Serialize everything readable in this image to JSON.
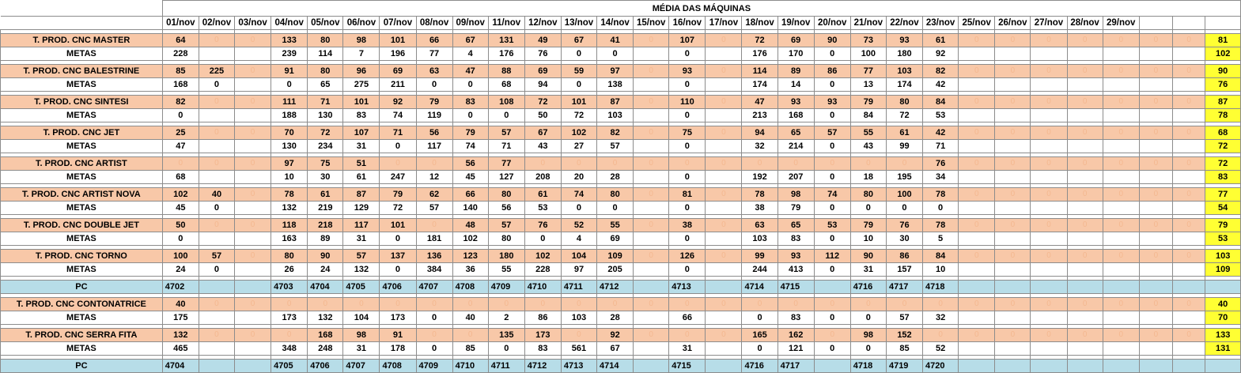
{
  "title": "MÉDIA DAS MÁQUINAS",
  "dates": [
    "01/nov",
    "02/nov",
    "03/nov",
    "04/nov",
    "05/nov",
    "06/nov",
    "07/nov",
    "08/nov",
    "09/nov",
    "11/nov",
    "12/nov",
    "13/nov",
    "14/nov",
    "15/nov",
    "16/nov",
    "17/nov",
    "18/nov",
    "19/nov",
    "20/nov",
    "21/nov",
    "22/nov",
    "23/nov",
    "25/nov",
    "26/nov",
    "27/nov",
    "28/nov",
    "29/nov",
    "",
    ""
  ],
  "meta_label": "METAS",
  "pc_label": "PC",
  "colors": {
    "prod_bg": "#f8c8a8",
    "pc_bg": "#b7dde8",
    "avg_bg": "#ffff33",
    "zero_text": "#f4b890"
  },
  "blocks": [
    {
      "type": "machine",
      "name": "T. PROD. CNC MASTER",
      "prod": [
        "64",
        "0",
        "0",
        "133",
        "80",
        "98",
        "101",
        "66",
        "67",
        "131",
        "49",
        "67",
        "41",
        "0",
        "107",
        "0",
        "72",
        "69",
        "90",
        "73",
        "93",
        "61",
        "0",
        "0",
        "0",
        "0",
        "0",
        "0",
        "0"
      ],
      "meta": [
        "228",
        "",
        "",
        "239",
        "114",
        "7",
        "196",
        "77",
        "4",
        "176",
        "76",
        "0",
        "0",
        "",
        "0",
        "",
        "176",
        "170",
        "0",
        "100",
        "180",
        "92",
        "",
        "",
        "",
        "",
        "",
        "",
        ""
      ],
      "avg_prod": "81",
      "avg_meta": "102"
    },
    {
      "type": "machine",
      "name": "T. PROD. CNC BALESTRINE",
      "prod": [
        "85",
        "225",
        "0",
        "91",
        "80",
        "96",
        "69",
        "63",
        "47",
        "88",
        "69",
        "59",
        "97",
        "0",
        "93",
        "0",
        "114",
        "89",
        "86",
        "77",
        "103",
        "82",
        "0",
        "0",
        "0",
        "0",
        "0",
        "0",
        "0"
      ],
      "meta": [
        "168",
        "0",
        "",
        "0",
        "65",
        "275",
        "211",
        "0",
        "0",
        "68",
        "94",
        "0",
        "138",
        "",
        "0",
        "",
        "174",
        "14",
        "0",
        "13",
        "174",
        "42",
        "",
        "",
        "",
        "",
        "",
        "",
        ""
      ],
      "avg_prod": "90",
      "avg_meta": "76"
    },
    {
      "type": "machine",
      "name": "T. PROD. CNC SINTESI",
      "prod": [
        "82",
        "0",
        "0",
        "111",
        "71",
        "101",
        "92",
        "79",
        "83",
        "108",
        "72",
        "101",
        "87",
        "0",
        "110",
        "0",
        "47",
        "93",
        "93",
        "79",
        "80",
        "84",
        "0",
        "0",
        "0",
        "0",
        "0",
        "0",
        "0"
      ],
      "meta": [
        "0",
        "",
        "",
        "188",
        "130",
        "83",
        "74",
        "119",
        "0",
        "0",
        "50",
        "72",
        "103",
        "",
        "0",
        "",
        "213",
        "168",
        "0",
        "84",
        "72",
        "53",
        "",
        "",
        "",
        "",
        "",
        "",
        ""
      ],
      "avg_prod": "87",
      "avg_meta": "78"
    },
    {
      "type": "machine",
      "name": "T. PROD. CNC JET",
      "prod": [
        "25",
        "0",
        "0",
        "70",
        "72",
        "107",
        "71",
        "56",
        "79",
        "57",
        "67",
        "102",
        "82",
        "0",
        "75",
        "0",
        "94",
        "65",
        "57",
        "55",
        "61",
        "42",
        "0",
        "0",
        "0",
        "0",
        "0",
        "0",
        "0"
      ],
      "meta": [
        "47",
        "",
        "",
        "130",
        "234",
        "31",
        "0",
        "117",
        "74",
        "71",
        "43",
        "27",
        "57",
        "",
        "0",
        "",
        "32",
        "214",
        "0",
        "43",
        "99",
        "71",
        "",
        "",
        "",
        "",
        "",
        "",
        ""
      ],
      "avg_prod": "68",
      "avg_meta": "72"
    },
    {
      "type": "machine",
      "name": "T. PROD. CNC ARTIST",
      "prod": [
        "0",
        "0",
        "0",
        "97",
        "75",
        "51",
        "0",
        "0",
        "56",
        "77",
        "0",
        "0",
        "0",
        "0",
        "0",
        "0",
        "0",
        "0",
        "0",
        "0",
        "0",
        "76",
        "0",
        "0",
        "0",
        "0",
        "0",
        "0",
        "0"
      ],
      "meta": [
        "68",
        "",
        "",
        "10",
        "30",
        "61",
        "247",
        "12",
        "45",
        "127",
        "208",
        "20",
        "28",
        "",
        "0",
        "",
        "192",
        "207",
        "0",
        "18",
        "195",
        "34",
        "",
        "",
        "",
        "",
        "",
        "",
        ""
      ],
      "avg_prod": "72",
      "avg_meta": "83"
    },
    {
      "type": "machine",
      "name": "T. PROD. CNC ARTIST NOVA",
      "prod": [
        "102",
        "40",
        "0",
        "78",
        "61",
        "87",
        "79",
        "62",
        "66",
        "80",
        "61",
        "74",
        "80",
        "0",
        "81",
        "0",
        "78",
        "98",
        "74",
        "80",
        "100",
        "78",
        "0",
        "0",
        "0",
        "0",
        "0",
        "0",
        "0"
      ],
      "meta": [
        "45",
        "0",
        "",
        "132",
        "219",
        "129",
        "72",
        "57",
        "140",
        "56",
        "53",
        "0",
        "0",
        "",
        "0",
        "",
        "38",
        "79",
        "0",
        "0",
        "0",
        "0",
        "",
        "",
        "",
        "",
        "",
        "",
        ""
      ],
      "avg_prod": "77",
      "avg_meta": "54"
    },
    {
      "type": "machine",
      "name": "T. PROD. CNC DOUBLE JET",
      "prod": [
        "50",
        "0",
        "0",
        "118",
        "218",
        "117",
        "101",
        "0",
        "48",
        "57",
        "76",
        "52",
        "55",
        "0",
        "38",
        "0",
        "63",
        "65",
        "53",
        "79",
        "76",
        "78",
        "0",
        "0",
        "0",
        "0",
        "0",
        "0",
        "0"
      ],
      "meta": [
        "0",
        "",
        "",
        "163",
        "89",
        "31",
        "0",
        "181",
        "102",
        "80",
        "0",
        "4",
        "69",
        "",
        "0",
        "",
        "103",
        "83",
        "0",
        "10",
        "30",
        "5",
        "",
        "",
        "",
        "",
        "",
        "",
        ""
      ],
      "avg_prod": "79",
      "avg_meta": "53"
    },
    {
      "type": "machine",
      "name": "T. PROD. CNC TORNO",
      "prod": [
        "100",
        "57",
        "0",
        "80",
        "90",
        "57",
        "137",
        "136",
        "123",
        "180",
        "102",
        "104",
        "109",
        "0",
        "126",
        "0",
        "99",
        "93",
        "112",
        "90",
        "86",
        "84",
        "0",
        "0",
        "0",
        "0",
        "0",
        "0",
        "0"
      ],
      "meta": [
        "24",
        "0",
        "",
        "26",
        "24",
        "132",
        "0",
        "384",
        "36",
        "55",
        "228",
        "97",
        "205",
        "",
        "0",
        "",
        "244",
        "413",
        "0",
        "31",
        "157",
        "10",
        "",
        "",
        "",
        "",
        "",
        "",
        ""
      ],
      "avg_prod": "103",
      "avg_meta": "109"
    },
    {
      "type": "pc",
      "values": [
        "4702",
        "",
        "",
        "4703",
        "4704",
        "4705",
        "4706",
        "4707",
        "4708",
        "4709",
        "4710",
        "4711",
        "4712",
        "",
        "4713",
        "",
        "4714",
        "4715",
        "",
        "4716",
        "4717",
        "4718",
        "",
        "",
        "",
        "",
        "",
        "",
        ""
      ]
    },
    {
      "type": "machine",
      "name": "T. PROD. CNC CONTONATRICE",
      "prod": [
        "40",
        "0",
        "0",
        "0",
        "0",
        "0",
        "0",
        "0",
        "0",
        "0",
        "0",
        "0",
        "0",
        "0",
        "0",
        "0",
        "0",
        "0",
        "0",
        "0",
        "0",
        "0",
        "0",
        "0",
        "0",
        "0",
        "0",
        "0",
        "0"
      ],
      "meta": [
        "175",
        "",
        "",
        "173",
        "132",
        "104",
        "173",
        "0",
        "40",
        "2",
        "86",
        "103",
        "28",
        "",
        "66",
        "",
        "0",
        "83",
        "0",
        "0",
        "57",
        "32",
        "",
        "",
        "",
        "",
        "",
        "",
        ""
      ],
      "avg_prod": "40",
      "avg_meta": "70"
    },
    {
      "type": "machine",
      "name": "T. PROD. CNC SERRA FITA",
      "prod": [
        "132",
        "0",
        "0",
        "0",
        "168",
        "98",
        "91",
        "0",
        "0",
        "135",
        "173",
        "0",
        "92",
        "0",
        "0",
        "0",
        "165",
        "162",
        "0",
        "98",
        "152",
        "0",
        "0",
        "0",
        "0",
        "0",
        "0",
        "0",
        "0"
      ],
      "meta": [
        "465",
        "",
        "",
        "348",
        "248",
        "31",
        "178",
        "0",
        "85",
        "0",
        "83",
        "561",
        "67",
        "",
        "31",
        "",
        "0",
        "121",
        "0",
        "0",
        "85",
        "52",
        "",
        "",
        "",
        "",
        "",
        "",
        ""
      ],
      "avg_prod": "133",
      "avg_meta": "131"
    },
    {
      "type": "pc",
      "values": [
        "4704",
        "",
        "",
        "4705",
        "4706",
        "4707",
        "4708",
        "4709",
        "4710",
        "4711",
        "4712",
        "4713",
        "4714",
        "",
        "4715",
        "",
        "4716",
        "4717",
        "",
        "4718",
        "4719",
        "4720",
        "",
        "",
        "",
        "",
        "",
        "",
        ""
      ]
    }
  ]
}
